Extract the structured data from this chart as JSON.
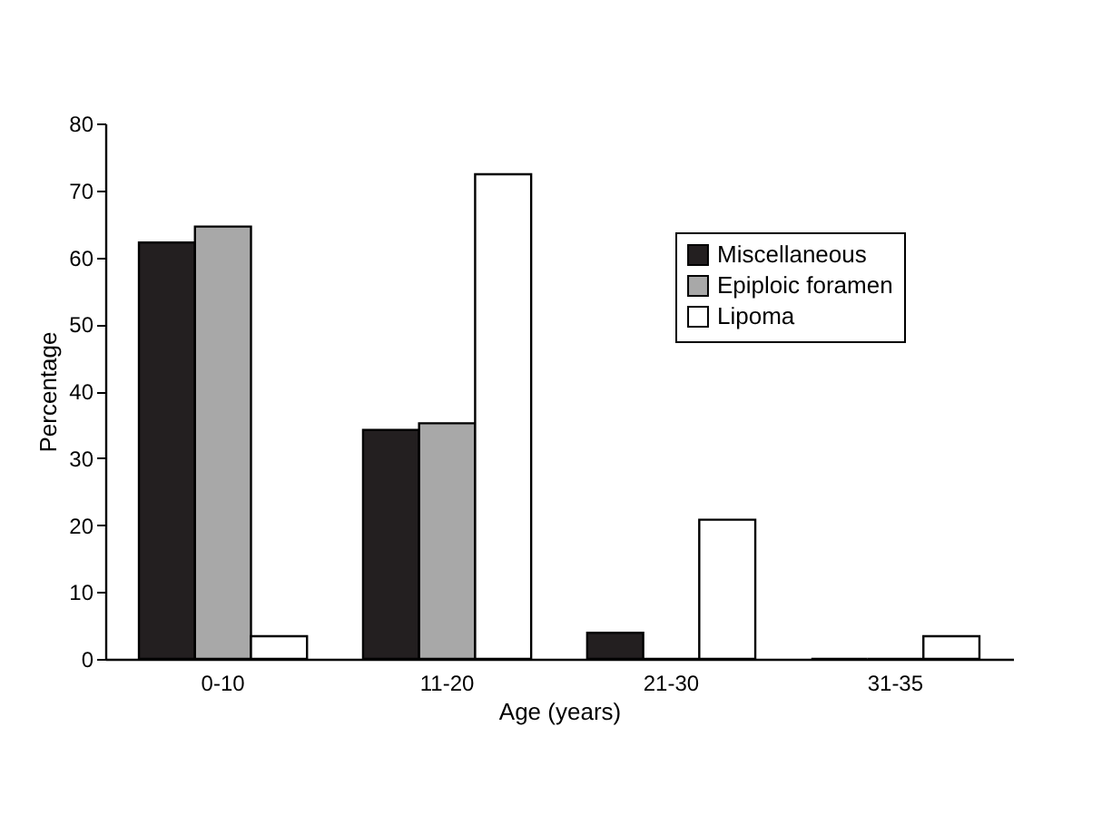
{
  "chart_data": {
    "type": "bar",
    "xlabel": "Age (years)",
    "ylabel": "Percentage",
    "categories": [
      "0-10",
      "11-20",
      "21-30",
      "31-35"
    ],
    "series": [
      {
        "name": "Miscellaneous",
        "color": "#231f20",
        "values": [
          62.2,
          34.2,
          3.9,
          0
        ]
      },
      {
        "name": "Epiploic foramen",
        "color": "#a8a8a8",
        "values": [
          64.6,
          35.2,
          0,
          0
        ]
      },
      {
        "name": "Lipoma",
        "color": "#ffffff",
        "values": [
          3.4,
          72.4,
          20.8,
          3.4
        ]
      }
    ],
    "ylim": [
      0,
      80
    ],
    "yticks": [
      0,
      10,
      20,
      30,
      40,
      50,
      60,
      70,
      80
    ],
    "grid": false,
    "legend": "top right"
  }
}
